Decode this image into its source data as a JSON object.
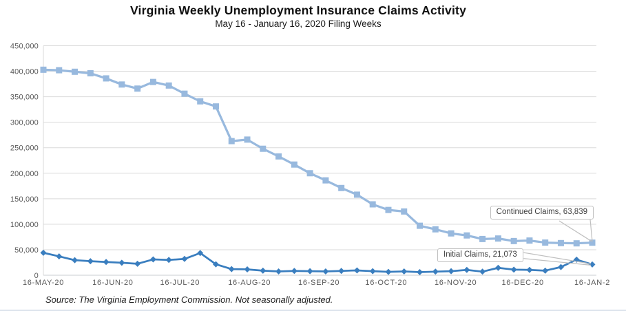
{
  "source_note": "Source: The Virginia Employment Commission. Not seasonally adjusted.",
  "colors": {
    "continued_claims": "#98B9DE",
    "initial_claims": "#3A7EBF",
    "gridline": "#D9D9D9",
    "axis_line": "#C9CDD1",
    "tick_label": "#595959",
    "callout_border": "#BFBFBF",
    "callout_text": "#404040"
  },
  "chart_data": {
    "type": "line",
    "title": "Virginia Weekly Unemployment Insurance Claims Activity",
    "subtitle": "May 16 - January 16, 2020 Filing Weeks",
    "grid": "horizontal",
    "legend": "none (series labeled by callouts)",
    "n_points": 36,
    "x_axis": {
      "tick_labels": [
        "16-MAY-20",
        "16-JUN-20",
        "16-JUL-20",
        "16-AUG-20",
        "16-SEP-20",
        "16-OCT-20",
        "16-NOV-20",
        "16-DEC-20",
        "16-JAN-2"
      ],
      "tick_weeks": [
        0,
        4.43,
        8.71,
        13.14,
        17.57,
        21.86,
        26.29,
        30.57,
        35
      ]
    },
    "y_axis": {
      "min": 0,
      "max": 450000,
      "tick_values": [
        0,
        50000,
        100000,
        150000,
        200000,
        250000,
        300000,
        350000,
        400000,
        450000
      ],
      "tick_labels": [
        "0",
        "50,000",
        "100,000",
        "150,000",
        "200,000",
        "250,000",
        "300,000",
        "350,000",
        "400,000",
        "450,000"
      ]
    },
    "series": [
      {
        "name": "Continued Claims",
        "marker": "square",
        "color": "#98B9DE",
        "values": [
          403000,
          402000,
          399000,
          396000,
          386000,
          374000,
          366000,
          379000,
          372000,
          356000,
          341000,
          331000,
          263000,
          266000,
          248000,
          233000,
          217000,
          200000,
          186000,
          171000,
          158000,
          139000,
          128000,
          125000,
          97000,
          90000,
          82000,
          78000,
          71000,
          72000,
          67000,
          68000,
          64000,
          63000,
          62500,
          63839
        ]
      },
      {
        "name": "Initial Claims",
        "marker": "diamond",
        "color": "#3A7EBF",
        "values": [
          44000,
          37000,
          29500,
          27500,
          26000,
          24500,
          22500,
          31000,
          30000,
          32000,
          43500,
          21500,
          12000,
          11500,
          9000,
          7500,
          8500,
          8000,
          7500,
          8500,
          9500,
          8000,
          6500,
          7500,
          6000,
          7000,
          8000,
          10500,
          7000,
          14500,
          11000,
          10500,
          9000,
          16000,
          30500,
          21073
        ]
      }
    ],
    "annotations": [
      {
        "label": "Continued Claims, 63,839",
        "series": "Continued Claims",
        "value": 63839
      },
      {
        "label": "Initial Claims, 21,073",
        "series": "Initial Claims",
        "value": 21073
      }
    ]
  }
}
